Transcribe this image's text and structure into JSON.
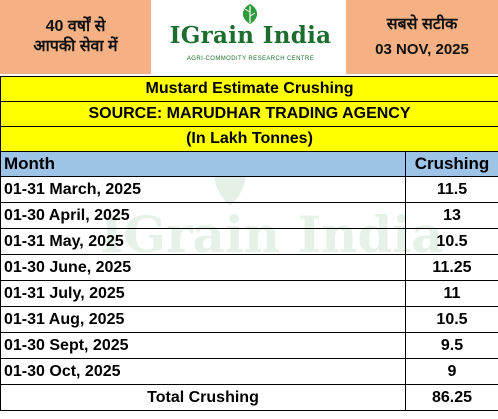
{
  "header": {
    "left_line1": "40 वर्षों से",
    "left_line2": "आपकी सेवा में",
    "logo_name": "IGrain India",
    "logo_tagline": "AGRI-COMMODITY RESEARCH CENTRE",
    "right_line1": "सबसे सटीक",
    "right_date": "03 NOV, 2025"
  },
  "title": "Mustard Estimate Crushing",
  "source": "SOURCE: MARUDHAR TRADING AGENCY",
  "unit": "(In Lakh Tonnes)",
  "columns": {
    "month": "Month",
    "crushing": "Crushing"
  },
  "rows": [
    {
      "month": "01-31 March, 2025",
      "crushing": "11.5"
    },
    {
      "month": "01-30 April, 2025",
      "crushing": "13"
    },
    {
      "month": "01-31 May, 2025",
      "crushing": "10.5"
    },
    {
      "month": "01-30 June, 2025",
      "crushing": "11.25"
    },
    {
      "month": "01-31 July, 2025",
      "crushing": "11"
    },
    {
      "month": "01-31 Aug, 2025",
      "crushing": "10.5"
    },
    {
      "month": "01-30 Sept, 2025",
      "crushing": "9.5"
    },
    {
      "month": "01-30 Oct, 2025",
      "crushing": "9"
    }
  ],
  "total": {
    "label": "Total Crushing",
    "value": "86.25"
  },
  "watermark": "IGrain India",
  "colors": {
    "header_orange": "#f5b183",
    "title_yellow": "#ffff00",
    "column_header_blue": "#9dc3e6",
    "brand_green": "#1d6e2e"
  }
}
